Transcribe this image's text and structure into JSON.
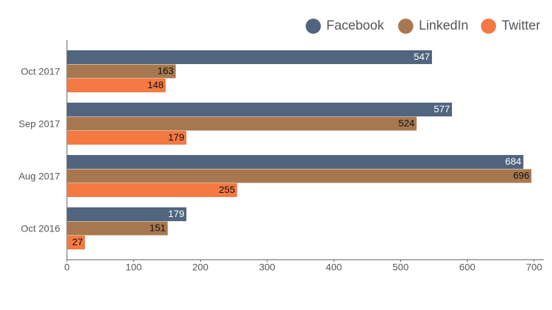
{
  "chart_data": {
    "type": "hbar",
    "categories": [
      "Oct 2017",
      "Sep 2017",
      "Aug 2017",
      "Oct 2016"
    ],
    "series": [
      {
        "name": "Facebook",
        "color": "#51657f",
        "values": [
          547,
          577,
          684,
          179
        ]
      },
      {
        "name": "LinkedIn",
        "color": "#a7784f",
        "values": [
          163,
          524,
          696,
          151
        ]
      },
      {
        "name": "Twitter",
        "color": "#f47942",
        "values": [
          148,
          179,
          255,
          27
        ]
      }
    ],
    "xlim": [
      0,
      700
    ],
    "xticks": [
      0,
      100,
      200,
      300,
      400,
      500,
      600,
      700
    ],
    "legend": "top-right"
  }
}
